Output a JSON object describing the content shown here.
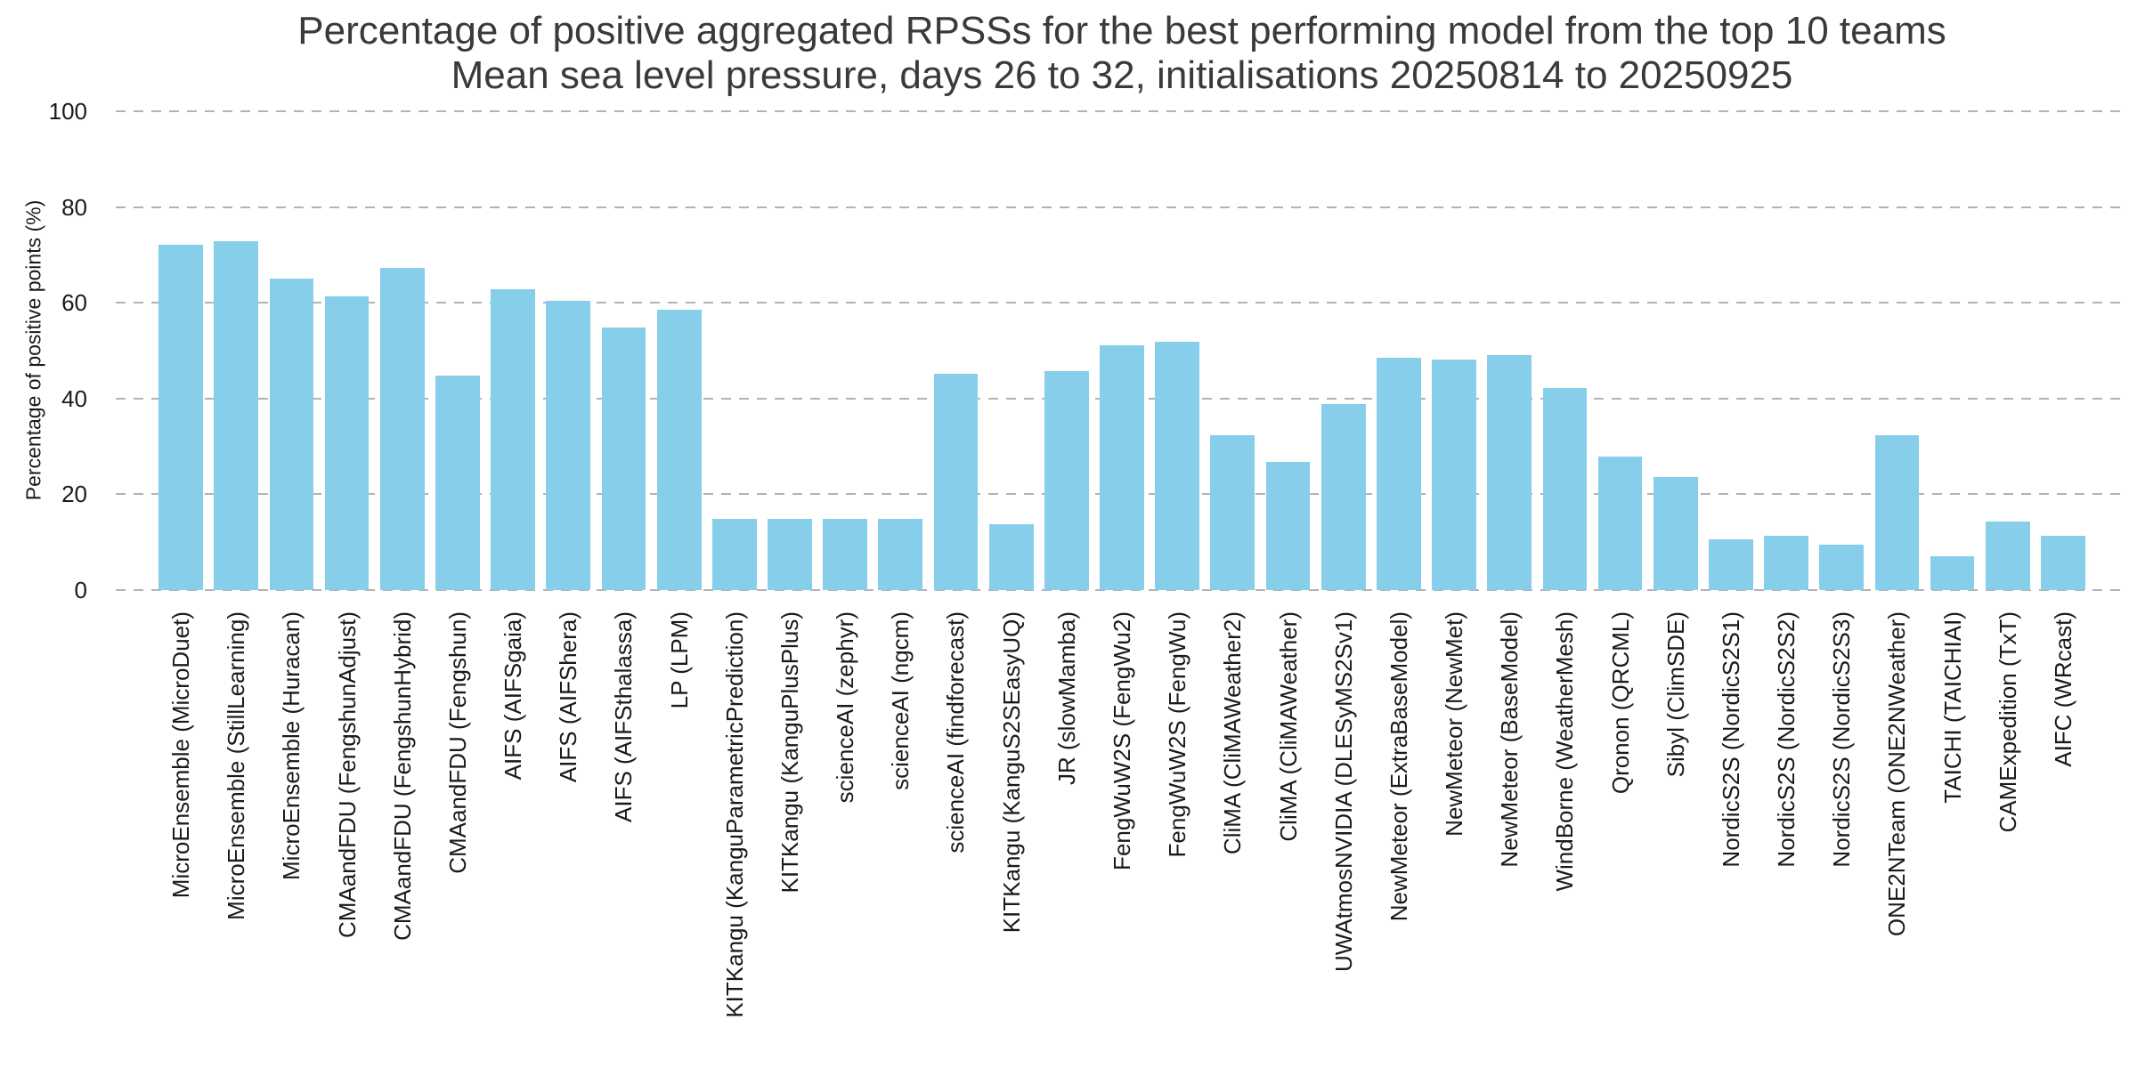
{
  "header": {
    "title": "Percentage of positive aggregated RPSSs for the best performing model from the top 10 teams",
    "subtitle": "Mean sea level pressure, days 26 to 32, initialisations 20250814 to 20250925"
  },
  "axes": {
    "ylabel": "Percentage of positive points (%)",
    "yticks": [
      0,
      20,
      40,
      60,
      80,
      100
    ],
    "ylim": [
      0,
      100
    ]
  },
  "colors": {
    "bar": "#87CEEB",
    "gridline": "#b3b3b3",
    "text": "#1a1a1a",
    "title_text": "#3a3a3a"
  },
  "chart_data": {
    "type": "bar",
    "title": "Percentage of positive aggregated RPSSs for the best performing model from the top 10 teams",
    "subtitle": "Mean sea level pressure, days 26 to 32, initialisations 20250814 to 20250925",
    "xlabel": "",
    "ylabel": "Percentage of positive points (%)",
    "ylim": [
      0,
      100
    ],
    "grid": true,
    "grid_style": "dashed",
    "legend": false,
    "categories": [
      "MicroEnsemble (MicroDuet)",
      "MicroEnsemble (StillLearning)",
      "MicroEnsemble (Huracan)",
      "CMAandFDU (FengshunAdjust)",
      "CMAandFDU (FengshunHybrid)",
      "CMAandFDU (Fengshun)",
      "AIFS (AIFSgaia)",
      "AIFS (AIFShera)",
      "AIFS (AIFSthalassa)",
      "LP (LPM)",
      "KITKangu (KanguParametricPrediction)",
      "KITKangu (KanguPlusPlus)",
      "scienceAI (zephyr)",
      "scienceAI (ngcm)",
      "scienceAI (findforecast)",
      "KITKangu (KanguS2SEasyUQ)",
      "JR (slowMamba)",
      "FengWuW2S (FengWu2)",
      "FengWuW2S (FengWu)",
      "CliMA (CliMAWeather2)",
      "CliMA (CliMAWeather)",
      "UWAtmosNVIDIA (DLESyMS2Sv1)",
      "NewMeteor (ExtraBaseModel)",
      "NewMeteor (NewMet)",
      "NewMeteor (BaseModel)",
      "WindBorne (WeatherMesh)",
      "Qronon (QRCML)",
      "Sibyl (ClimSDE)",
      "NordicS2S (NordicS2S1)",
      "NordicS2S (NordicS2S2)",
      "NordicS2S (NordicS2S3)",
      "ONE2NTeam (ONE2NWeather)",
      "TAICHI (TAICHIAI)",
      "CAMExpedition (TxT)",
      "AIFC (WRcast)"
    ],
    "values": [
      72.1,
      72.9,
      65.0,
      61.4,
      67.2,
      44.8,
      62.9,
      60.5,
      54.9,
      58.5,
      14.8,
      14.8,
      14.8,
      14.8,
      45.2,
      13.7,
      45.7,
      51.2,
      51.9,
      32.4,
      26.8,
      38.8,
      48.6,
      48.2,
      49.1,
      42.2,
      27.9,
      23.6,
      10.6,
      11.4,
      9.5,
      32.4,
      7.0,
      14.3,
      11.3
    ]
  }
}
